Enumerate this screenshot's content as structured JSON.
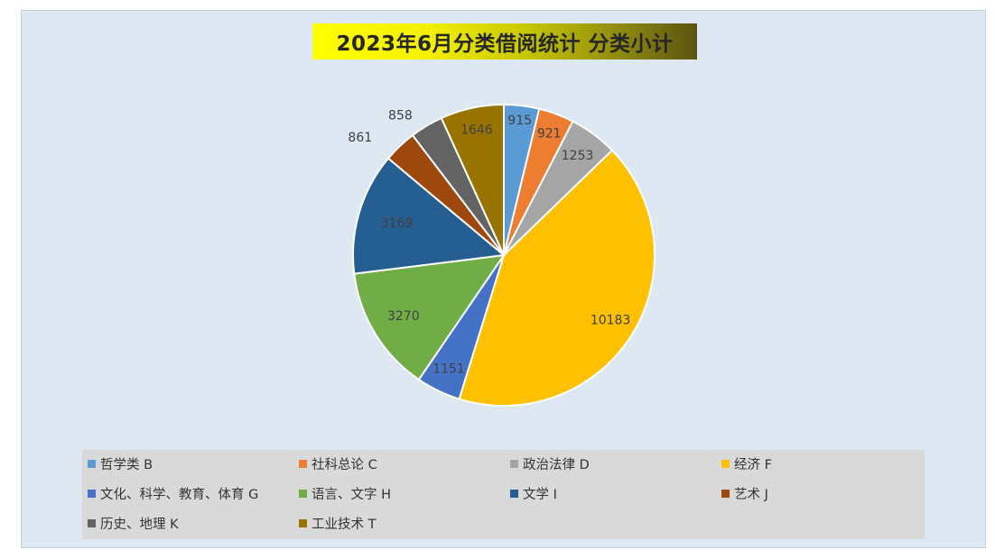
{
  "chart_data": {
    "type": "pie",
    "title": "2023年6月分类借阅统计 分类小计",
    "categories": [
      "哲学类 B",
      "社科总论 C",
      "政治法律 D",
      "经济 F",
      "文化、科学、教育、体育 G",
      "语言、文字 H",
      "文学 I",
      "艺术 J",
      "历史、地理 K",
      "工业技术 T"
    ],
    "values": [
      915,
      921,
      1253,
      10183,
      1151,
      3270,
      3169,
      861,
      858,
      1646
    ],
    "labels": [
      "915",
      "921",
      "1253",
      "10183",
      "1151",
      "3270",
      "3169",
      "861",
      "858",
      "1646"
    ],
    "colors": [
      "#5b9bd5",
      "#ed7d31",
      "#a5a5a5",
      "#ffc000",
      "#4472c4",
      "#70ad47",
      "#255e91",
      "#9e480e",
      "#636363",
      "#997300"
    ],
    "legend_position": "bottom",
    "start_angle_deg": 0,
    "direction": "clockwise"
  }
}
